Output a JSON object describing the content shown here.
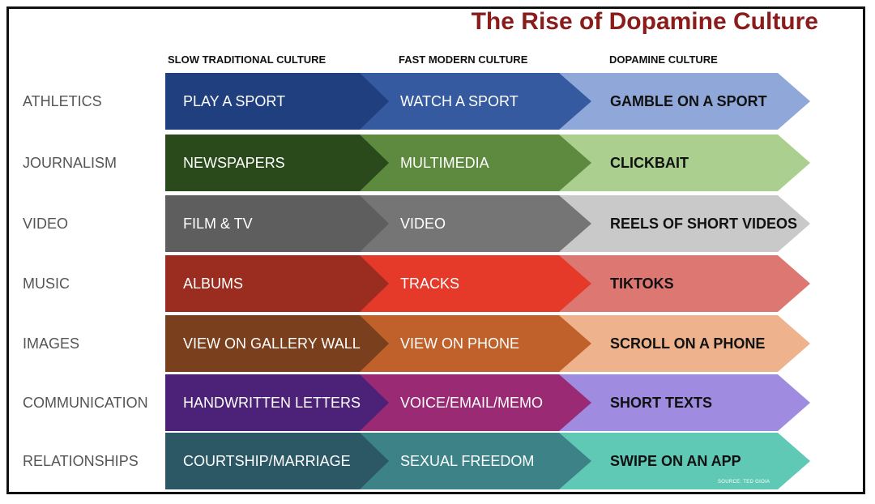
{
  "title": "The Rise of Dopamine Culture",
  "columns": [
    "SLOW TRADITIONAL CULTURE",
    "FAST MODERN CULTURE",
    "DOPAMINE CULTURE"
  ],
  "rows": [
    {
      "label": "ATHLETICS",
      "stages": [
        "PLAY A SPORT",
        "WATCH A SPORT",
        "GAMBLE ON A SPORT"
      ],
      "colors": [
        "#1f3f7e",
        "#365a9f",
        "#8fa8d9"
      ]
    },
    {
      "label": "JOURNALISM",
      "stages": [
        "NEWSPAPERS",
        "MULTIMEDIA",
        "CLICKBAIT"
      ],
      "colors": [
        "#2b4a1c",
        "#5d8a3e",
        "#aacf8f"
      ]
    },
    {
      "label": "VIDEO",
      "stages": [
        "FILM &  TV",
        "VIDEO",
        "REELS OF SHORT VIDEOS"
      ],
      "colors": [
        "#5e5e5e",
        "#757575",
        "#c9c9c9"
      ]
    },
    {
      "label": "MUSIC",
      "stages": [
        "ALBUMS",
        "TRACKS",
        "TIKTOKS"
      ],
      "colors": [
        "#9b2c20",
        "#e5392a",
        "#dd7772"
      ]
    },
    {
      "label": "IMAGES",
      "stages": [
        "VIEW ON GALLERY WALL",
        "VIEW ON PHONE",
        "SCROLL ON A PHONE"
      ],
      "colors": [
        "#7a3f1d",
        "#c0612b",
        "#eeb38c"
      ]
    },
    {
      "label": "COMMUNICATION",
      "stages": [
        "HANDWRITTEN LETTERS",
        "VOICE/EMAIL/MEMO",
        "SHORT TEXTS"
      ],
      "colors": [
        "#4b2278",
        "#9b2a74",
        "#9f8ce0"
      ]
    },
    {
      "label": "RELATIONSHIPS",
      "stages": [
        "COURTSHIP/MARRIAGE",
        "SEXUAL FREEDOM",
        "SWIPE ON AN APP"
      ],
      "colors": [
        "#2c5866",
        "#3c8286",
        "#5fc9b6"
      ]
    }
  ],
  "source": "SOURCE: TED GIOIA"
}
